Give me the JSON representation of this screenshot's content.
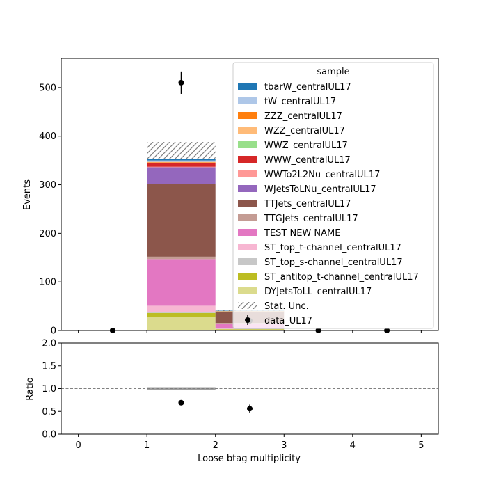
{
  "chart_data": {
    "type": "bar",
    "stacked": true,
    "x_bin_edges": [
      0,
      1,
      2,
      3,
      4,
      5
    ],
    "xlim": [
      -0.25,
      5.25
    ],
    "xticks": [
      "0",
      "1",
      "2",
      "3",
      "4",
      "5"
    ],
    "xlabel": "Loose btag multiplicity",
    "main": {
      "ylabel": "Events",
      "ylim": [
        0,
        560
      ],
      "yticks": [
        "0",
        "100",
        "200",
        "300",
        "400",
        "500"
      ],
      "series": [
        {
          "name": "DYJetsToLL_centralUL17",
          "color": "#dbdb8d",
          "values": [
            0,
            28,
            2,
            0,
            0
          ]
        },
        {
          "name": "ST_antitop_t-channel_centralUL17",
          "color": "#bcbd22",
          "values": [
            0,
            8,
            1,
            0,
            0
          ]
        },
        {
          "name": "ST_top_s-channel_centralUL17",
          "color": "#c7c7c7",
          "values": [
            0,
            2,
            0.5,
            0,
            0
          ]
        },
        {
          "name": "ST_top_t-channel_centralUL17",
          "color": "#f7b6d2",
          "values": [
            0,
            13,
            2,
            0,
            0
          ]
        },
        {
          "name": "TEST NEW NAME",
          "color": "#e377c2",
          "values": [
            0,
            96,
            9,
            0,
            0
          ]
        },
        {
          "name": "TTGJets_centralUL17",
          "color": "#c49c94",
          "values": [
            0,
            5,
            1,
            0,
            0
          ]
        },
        {
          "name": "TTJets_centralUL17",
          "color": "#8c564b",
          "values": [
            0,
            150,
            22,
            0,
            0
          ]
        },
        {
          "name": "WJetsToLNu_centralUL17",
          "color": "#9467bd",
          "values": [
            0,
            34,
            1,
            0,
            0
          ]
        },
        {
          "name": "WWTo2L2Nu_centralUL17",
          "color": "#ff9896",
          "values": [
            0,
            1,
            0.2,
            0,
            0
          ]
        },
        {
          "name": "WWW_centralUL17",
          "color": "#d62728",
          "values": [
            0,
            7,
            0.5,
            0,
            0
          ]
        },
        {
          "name": "WWZ_centralUL17",
          "color": "#98df8a",
          "values": [
            0,
            1,
            0.2,
            0,
            0
          ]
        },
        {
          "name": "WZZ_centralUL17",
          "color": "#ffbb78",
          "values": [
            0,
            1,
            0.2,
            0,
            0
          ]
        },
        {
          "name": "ZZZ_centralUL17",
          "color": "#ff7f0e",
          "values": [
            0,
            1,
            0.2,
            0,
            0
          ]
        },
        {
          "name": "tW_centralUL17",
          "color": "#aec7e8",
          "values": [
            0,
            3,
            0.5,
            0,
            0
          ]
        },
        {
          "name": "tbarW_centralUL17",
          "color": "#1f77b4",
          "values": [
            0,
            3,
            0.5,
            0,
            0
          ]
        }
      ],
      "stat_unc": {
        "name": "Stat. Unc.",
        "low": [
          0,
          353,
          40,
          0,
          0
        ],
        "high": [
          0,
          388,
          42,
          0,
          0
        ]
      },
      "data": {
        "name": "data_UL17",
        "x": [
          0.5,
          1.5,
          2.5,
          3.5,
          4.5
        ],
        "y": [
          0,
          510,
          20,
          0,
          0
        ],
        "yerr": [
          0,
          23,
          7,
          0,
          0
        ]
      }
    },
    "ratio": {
      "ylabel": "Ratio",
      "ylim": [
        0,
        2
      ],
      "yticks": [
        "0.0",
        "0.5",
        "1.0",
        "1.5",
        "2.0"
      ],
      "reference_line": 1.0,
      "unc_band": {
        "low": [
          0,
          0.97,
          0,
          0,
          0
        ],
        "high": [
          0,
          1.03,
          0,
          0,
          0
        ]
      },
      "points": {
        "x": [
          1.5,
          2.5
        ],
        "y": [
          0.69,
          0.56
        ],
        "yerr": [
          0.04,
          0.09
        ]
      }
    },
    "legend": {
      "title": "sample",
      "placement": "upper right"
    }
  }
}
